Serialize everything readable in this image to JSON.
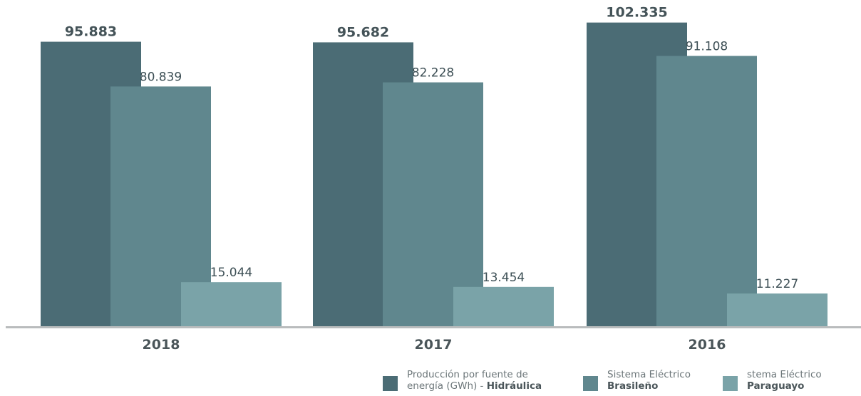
{
  "chart_data": {
    "type": "bar",
    "categories": [
      "2018",
      "2017",
      "2016"
    ],
    "series": [
      {
        "name": "Producción por fuente de energía (GWh) - Hidráulica",
        "values": [
          95.883,
          95.682,
          102.335
        ],
        "labels": [
          "95.883",
          "95.682",
          "102.335"
        ],
        "color": "#4b6c75"
      },
      {
        "name": "Sistema Eléctrico Brasileño",
        "values": [
          80.839,
          82.228,
          91.108
        ],
        "labels": [
          "80.839",
          "82.228",
          "91.108"
        ],
        "color": "#60878e"
      },
      {
        "name": "stema Eléctrico Paraguayo",
        "values": [
          15.044,
          13.454,
          11.227
        ],
        "labels": [
          "15.044",
          "13.454",
          "11.227"
        ],
        "color": "#7aa3a8"
      }
    ],
    "legend_position": "bottom-right",
    "grid": false
  },
  "legend": [
    {
      "line1": "Producción por fuente de",
      "line2_plain": "energía (GWh) - ",
      "line2_bold": "Hidráulica",
      "color": "#4b6c75"
    },
    {
      "line1": "Sistema Eléctrico",
      "line2_plain": "",
      "line2_bold": "Brasileño",
      "color": "#60878e"
    },
    {
      "line1": "stema Eléctrico",
      "line2_plain": "",
      "line2_bold": "Paraguayo",
      "color": "#7aa3a8"
    }
  ]
}
